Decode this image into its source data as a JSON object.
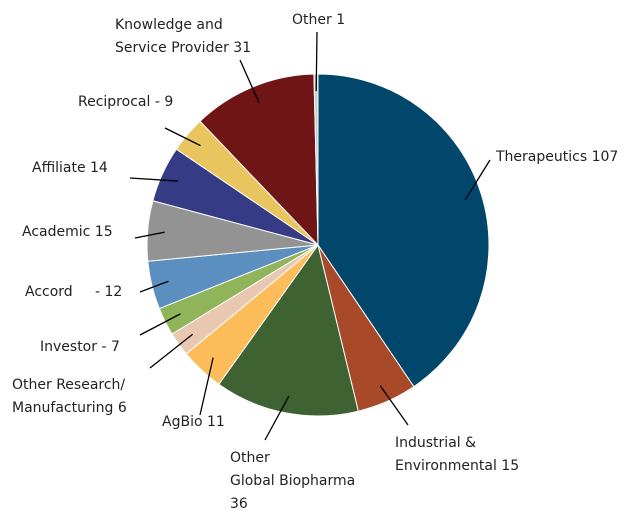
{
  "chart_data": {
    "type": "pie",
    "values": [
      107,
      15,
      36,
      11,
      6,
      7,
      12,
      15,
      14,
      9,
      31,
      1
    ],
    "value_labels": [
      [
        "Therapeutics 107"
      ],
      [
        "Industrial &",
        "Environmental 15"
      ],
      [
        "Other",
        "Global Biopharma",
        "36"
      ],
      [
        "AgBio 11"
      ],
      [
        "Other Research/",
        "Manufacturing 6"
      ],
      [
        "Investor - 7"
      ],
      [
        "Accord     - 12"
      ],
      [
        "Academic 15"
      ],
      [
        "Affiliate 14"
      ],
      [
        "Reciprocal - 9"
      ],
      [
        "Knowledge and",
        "Service Provider 31"
      ],
      [
        "Other 1"
      ]
    ],
    "colors": [
      "#00476b",
      "#a84a2a",
      "#3e6232",
      "#fcbc5a",
      "#e8c8b0",
      "#8fb45a",
      "#5b8fc0",
      "#939393",
      "#363b85",
      "#e9c55f",
      "#701515",
      "#cccccc"
    ]
  }
}
